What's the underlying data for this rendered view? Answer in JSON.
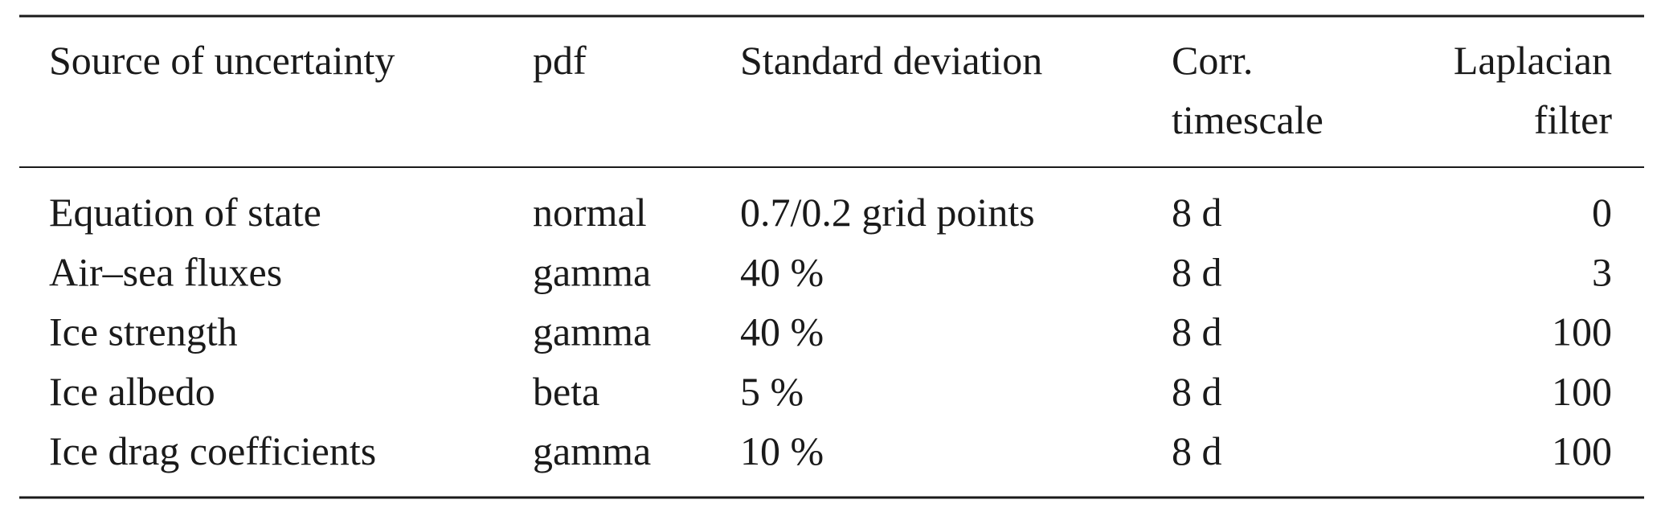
{
  "table": {
    "header": [
      [
        "Source of uncertainty"
      ],
      [
        "pdf"
      ],
      [
        "Standard deviation"
      ],
      [
        "Corr.",
        "timescale"
      ],
      [
        "Laplacian",
        "filter"
      ]
    ],
    "rows": [
      [
        "Equation of state",
        "normal",
        "0.7/0.2 grid points",
        "8 d",
        "0"
      ],
      [
        "Air–sea fluxes",
        "gamma",
        "40 %",
        "8 d",
        "3"
      ],
      [
        "Ice strength",
        "gamma",
        "40 %",
        "8 d",
        "100"
      ],
      [
        "Ice albedo",
        "beta",
        "5 %",
        "8 d",
        "100"
      ],
      [
        "Ice drag coefficients",
        "gamma",
        "10 %",
        "8 d",
        "100"
      ]
    ]
  }
}
